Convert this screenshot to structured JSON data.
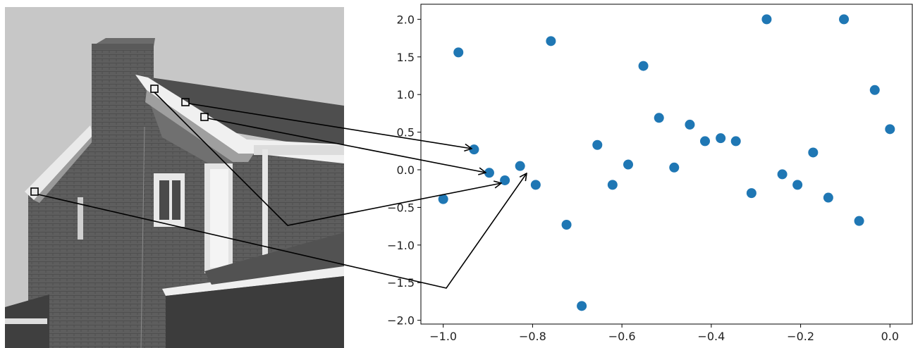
{
  "chart_data": {
    "type": "scatter",
    "title": "",
    "xlabel": "",
    "ylabel": "",
    "xlim": [
      -1.05,
      0.05
    ],
    "ylim": [
      -2.05,
      2.2
    ],
    "xticks": [
      -1.0,
      -0.8,
      -0.6,
      -0.4,
      -0.2,
      0.0
    ],
    "xtick_labels": [
      "−1.0",
      "−0.8",
      "−0.6",
      "−0.4",
      "−0.2",
      "0.0"
    ],
    "yticks": [
      2.0,
      1.5,
      1.0,
      0.5,
      0.0,
      -0.5,
      -1.0,
      -1.5,
      -2.0
    ],
    "ytick_labels": [
      "2.0",
      "1.5",
      "1.0",
      "0.5",
      "0.0",
      "−0.5",
      "−1.0",
      "−1.5",
      "−2.0"
    ],
    "grid": false,
    "point_color": "#1f77b4",
    "series": [
      {
        "x": [
          -1.0,
          -0.966,
          -0.931,
          -0.897,
          -0.862,
          -0.828,
          -0.793,
          -0.759,
          -0.724,
          -0.69,
          -0.655,
          -0.621,
          -0.586,
          -0.552,
          -0.517,
          -0.483,
          -0.448,
          -0.414,
          -0.379,
          -0.345,
          -0.31,
          -0.276,
          -0.241,
          -0.207,
          -0.172,
          -0.138,
          -0.103,
          -0.069,
          -0.034,
          0.0
        ],
        "y": [
          -0.39,
          1.56,
          0.27,
          -0.04,
          -0.14,
          0.05,
          -0.2,
          1.71,
          -0.73,
          -1.81,
          0.33,
          -0.2,
          0.07,
          1.38,
          0.69,
          0.03,
          0.6,
          0.38,
          0.42,
          0.38,
          -0.31,
          2.0,
          -0.06,
          -0.2,
          0.23,
          -0.37,
          2.0,
          -0.68,
          1.06,
          0.54
        ]
      }
    ]
  },
  "photo": {
    "icon": "house-photo",
    "subject": "grayscale photograph of a house",
    "marker_count": 4
  }
}
